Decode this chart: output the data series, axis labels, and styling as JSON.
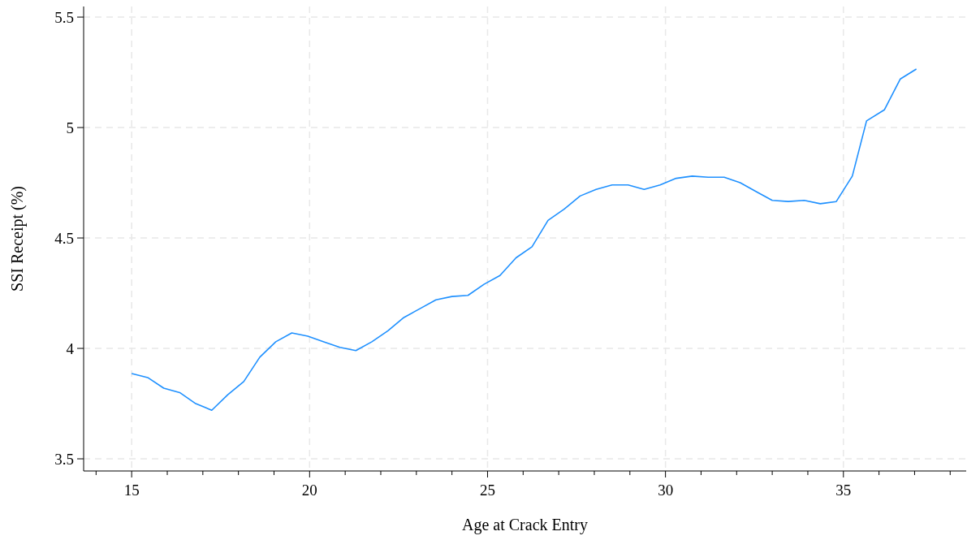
{
  "chart_data": {
    "type": "line",
    "xlabel": "Age at Crack Entry",
    "ylabel": "SSI Receipt (%)",
    "x": [
      15,
      15.45,
      15.9,
      16.35,
      16.8,
      17.25,
      17.7,
      18.15,
      18.6,
      19.05,
      19.5,
      19.95,
      20.4,
      20.85,
      21.3,
      21.75,
      22.2,
      22.65,
      23.1,
      23.55,
      24,
      24.45,
      24.9,
      25.35,
      25.8,
      26.25,
      26.7,
      27.15,
      27.6,
      28.05,
      28.5,
      28.95,
      29.4,
      29.85,
      30.3,
      30.75,
      31.2,
      31.65,
      32.1,
      32.55,
      33,
      33.45,
      33.9,
      34.35,
      34.8,
      35.25,
      35.65,
      36.15,
      36.6,
      37.05
    ],
    "series": [
      {
        "color": "#1e90ff",
        "values": [
          3.886,
          3.868,
          3.82,
          3.8,
          3.75,
          3.72,
          3.79,
          3.85,
          3.96,
          4.03,
          4.07,
          4.055,
          4.03,
          4.005,
          3.99,
          4.03,
          4.08,
          4.14,
          4.18,
          4.22,
          4.235,
          4.24,
          4.29,
          4.33,
          4.41,
          4.46,
          4.58,
          4.63,
          4.69,
          4.72,
          4.74,
          4.74,
          4.72,
          4.74,
          4.77,
          4.78,
          4.775,
          4.775,
          4.75,
          4.71,
          4.67,
          4.665,
          4.67,
          4.655,
          4.665,
          4.78,
          5.03,
          5.08,
          5.22,
          5.265
        ]
      }
    ],
    "xlim": [
      13.65,
      38.45
    ],
    "ylim": [
      3.445,
      5.548
    ],
    "xticks": [
      {
        "value": 14,
        "label": null
      },
      15,
      {
        "value": 16,
        "label": null
      },
      {
        "value": 17,
        "label": null
      },
      {
        "value": 18,
        "label": null
      },
      {
        "value": 19,
        "label": null
      },
      20,
      {
        "value": 21,
        "label": null
      },
      {
        "value": 22,
        "label": null
      },
      {
        "value": 23,
        "label": null
      },
      {
        "value": 24,
        "label": null
      },
      25,
      {
        "value": 26,
        "label": null
      },
      {
        "value": 27,
        "label": null
      },
      {
        "value": 28,
        "label": null
      },
      {
        "value": 29,
        "label": null
      },
      30,
      {
        "value": 31,
        "label": null
      },
      {
        "value": 32,
        "label": null
      },
      {
        "value": 33,
        "label": null
      },
      {
        "value": 34,
        "label": null
      },
      35,
      {
        "value": 36,
        "label": null
      },
      {
        "value": 37,
        "label": null
      },
      {
        "value": 38,
        "label": null
      }
    ],
    "yticks": [
      3.5,
      4,
      4.5,
      5,
      5.5
    ],
    "grid": true,
    "line_style": "solid"
  }
}
